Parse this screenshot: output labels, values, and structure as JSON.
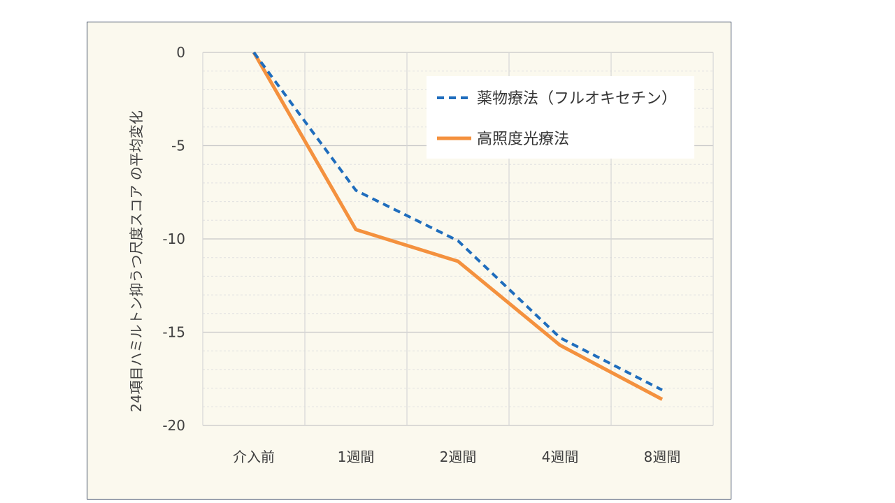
{
  "chart_data": {
    "type": "line",
    "title": "",
    "xlabel": "",
    "ylabel": "24項目ハミルトン抑うつ尺度スコア の平均変化",
    "categories": [
      "介入前",
      "1週間",
      "2週間",
      "4週間",
      "8週間"
    ],
    "ylim": [
      -20,
      0
    ],
    "yticks": [
      0,
      -5,
      -10,
      -15,
      -20
    ],
    "ytick_labels": [
      "0",
      "-5",
      "-10",
      "-15",
      "-20"
    ],
    "grid": true,
    "legend_position": "top-right",
    "series": [
      {
        "name": "薬物療法（フルオキセチン）",
        "values": [
          0,
          -7.4,
          -10.1,
          -15.3,
          -18.1
        ],
        "color": "#1f6dbd",
        "style": "dashed"
      },
      {
        "name": "高照度光療法",
        "values": [
          0,
          -9.5,
          -11.2,
          -15.7,
          -18.6
        ],
        "color": "#f4913e",
        "style": "solid"
      }
    ]
  }
}
